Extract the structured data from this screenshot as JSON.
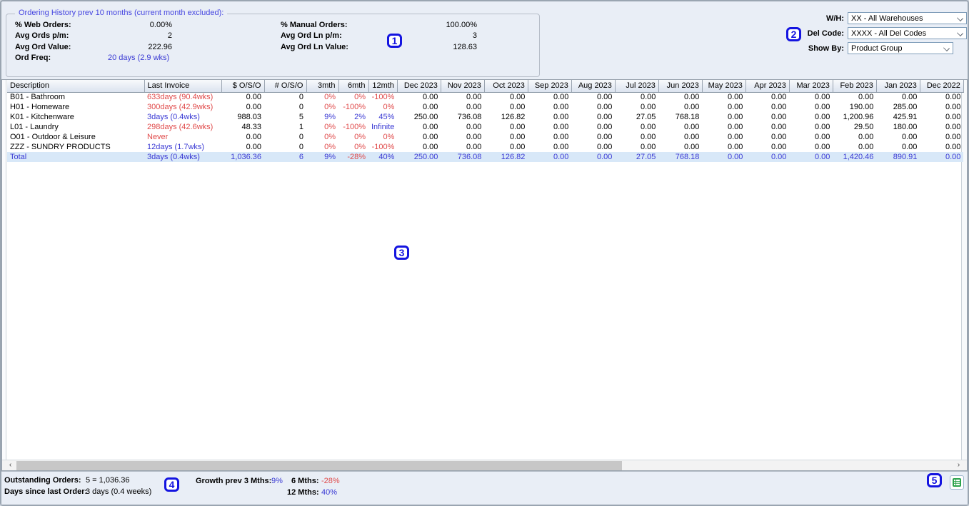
{
  "panel": {
    "legend": "Ordering History prev 10 months (current month excluded):",
    "left": [
      {
        "label": "% Web Orders:",
        "value": "0.00%"
      },
      {
        "label": "Avg Ords p/m:",
        "value": "2"
      },
      {
        "label": "Avg Ord Value:",
        "value": "222.96"
      },
      {
        "label": "Ord Freq:",
        "value": "20 days (2.9 wks)"
      }
    ],
    "right": [
      {
        "label": "% Manual Orders:",
        "value": "100.00%"
      },
      {
        "label": "Avg Ord Ln p/m:",
        "value": "3"
      },
      {
        "label": "Avg Ord Ln Value:",
        "value": "128.63"
      }
    ]
  },
  "filters": [
    {
      "label": "W/H:",
      "value": "XX - All Warehouses"
    },
    {
      "label": "Del Code:",
      "value": "XXXX - All Del Codes"
    },
    {
      "label": "Show By:",
      "value": "Product Group"
    }
  ],
  "table": {
    "columns": [
      "Description",
      "Last Invoice",
      "$ O/S/O",
      "# O/S/O",
      "3mth",
      "6mth",
      "12mth",
      "Dec 2023",
      "Nov 2023",
      "Oct 2023",
      "Sep 2023",
      "Aug 2023",
      "Jul 2023",
      "Jun 2023",
      "May 2023",
      "Apr 2023",
      "Mar 2023",
      "Feb 2023",
      "Jan 2023",
      "Dec 2022"
    ],
    "rows": [
      {
        "cells": [
          "B01 - Bathroom",
          "633days (90.4wks)",
          "0.00",
          "0",
          "0%",
          "0%",
          "-100%",
          "0.00",
          "0.00",
          "0.00",
          "0.00",
          "0.00",
          "0.00",
          "0.00",
          "0.00",
          "0.00",
          "0.00",
          "0.00",
          "0.00",
          "0.00"
        ],
        "colors": [
          "k",
          "r",
          "k",
          "k",
          "r",
          "r",
          "r",
          "k",
          "k",
          "k",
          "k",
          "k",
          "k",
          "k",
          "k",
          "k",
          "k",
          "k",
          "k",
          "k"
        ]
      },
      {
        "cells": [
          "H01 - Homeware",
          "300days (42.9wks)",
          "0.00",
          "0",
          "0%",
          "-100%",
          "0%",
          "0.00",
          "0.00",
          "0.00",
          "0.00",
          "0.00",
          "0.00",
          "0.00",
          "0.00",
          "0.00",
          "0.00",
          "190.00",
          "285.00",
          "0.00"
        ],
        "colors": [
          "k",
          "r",
          "k",
          "k",
          "r",
          "r",
          "r",
          "k",
          "k",
          "k",
          "k",
          "k",
          "k",
          "k",
          "k",
          "k",
          "k",
          "k",
          "k",
          "k"
        ]
      },
      {
        "cells": [
          "K01 - Kitchenware",
          "3days (0.4wks)",
          "988.03",
          "5",
          "9%",
          "2%",
          "45%",
          "250.00",
          "736.08",
          "126.82",
          "0.00",
          "0.00",
          "27.05",
          "768.18",
          "0.00",
          "0.00",
          "0.00",
          "1,200.96",
          "425.91",
          "0.00"
        ],
        "colors": [
          "k",
          "b",
          "k",
          "k",
          "b",
          "b",
          "b",
          "k",
          "k",
          "k",
          "k",
          "k",
          "k",
          "k",
          "k",
          "k",
          "k",
          "k",
          "k",
          "k"
        ]
      },
      {
        "cells": [
          "L01 - Laundry",
          "298days (42.6wks)",
          "48.33",
          "1",
          "0%",
          "-100%",
          "Infinite",
          "0.00",
          "0.00",
          "0.00",
          "0.00",
          "0.00",
          "0.00",
          "0.00",
          "0.00",
          "0.00",
          "0.00",
          "29.50",
          "180.00",
          "0.00"
        ],
        "colors": [
          "k",
          "r",
          "k",
          "k",
          "r",
          "r",
          "b",
          "k",
          "k",
          "k",
          "k",
          "k",
          "k",
          "k",
          "k",
          "k",
          "k",
          "k",
          "k",
          "k"
        ]
      },
      {
        "cells": [
          "O01 - Outdoor & Leisure",
          "Never",
          "0.00",
          "0",
          "0%",
          "0%",
          "0%",
          "0.00",
          "0.00",
          "0.00",
          "0.00",
          "0.00",
          "0.00",
          "0.00",
          "0.00",
          "0.00",
          "0.00",
          "0.00",
          "0.00",
          "0.00"
        ],
        "colors": [
          "k",
          "r",
          "k",
          "k",
          "r",
          "r",
          "r",
          "k",
          "k",
          "k",
          "k",
          "k",
          "k",
          "k",
          "k",
          "k",
          "k",
          "k",
          "k",
          "k"
        ]
      },
      {
        "cells": [
          "ZZZ - SUNDRY PRODUCTS",
          "12days (1.7wks)",
          "0.00",
          "0",
          "0%",
          "0%",
          "-100%",
          "0.00",
          "0.00",
          "0.00",
          "0.00",
          "0.00",
          "0.00",
          "0.00",
          "0.00",
          "0.00",
          "0.00",
          "0.00",
          "0.00",
          "0.00"
        ],
        "colors": [
          "k",
          "b",
          "k",
          "k",
          "r",
          "r",
          "r",
          "k",
          "k",
          "k",
          "k",
          "k",
          "k",
          "k",
          "k",
          "k",
          "k",
          "k",
          "k",
          "k"
        ]
      },
      {
        "cells": [
          "Total",
          "3days (0.4wks)",
          "1,036.36",
          "6",
          "9%",
          "-28%",
          "40%",
          "250.00",
          "736.08",
          "126.82",
          "0.00",
          "0.00",
          "27.05",
          "768.18",
          "0.00",
          "0.00",
          "0.00",
          "1,420.46",
          "890.91",
          "0.00"
        ],
        "colors": [
          "b",
          "b",
          "b",
          "b",
          "b",
          "r",
          "b",
          "b",
          "b",
          "b",
          "b",
          "b",
          "b",
          "b",
          "b",
          "b",
          "b",
          "b",
          "b",
          "b"
        ],
        "total": true
      }
    ]
  },
  "footer": {
    "outstanding_label": "Outstanding Orders:",
    "outstanding_value": "5 = 1,036.36",
    "days_label": "Days since last Order:",
    "days_value": "3 days (0.4 weeks)",
    "growth3_label": "Growth prev 3 Mths:",
    "growth3_value": "9%",
    "growth6_label": "6 Mths:",
    "growth6_value": "-28%",
    "growth12_label": "12 Mths:",
    "growth12_value": "40%"
  },
  "icons": {
    "scroll_left": "‹",
    "scroll_right": "›"
  },
  "annotations": [
    "1",
    "2",
    "3",
    "4",
    "5"
  ]
}
